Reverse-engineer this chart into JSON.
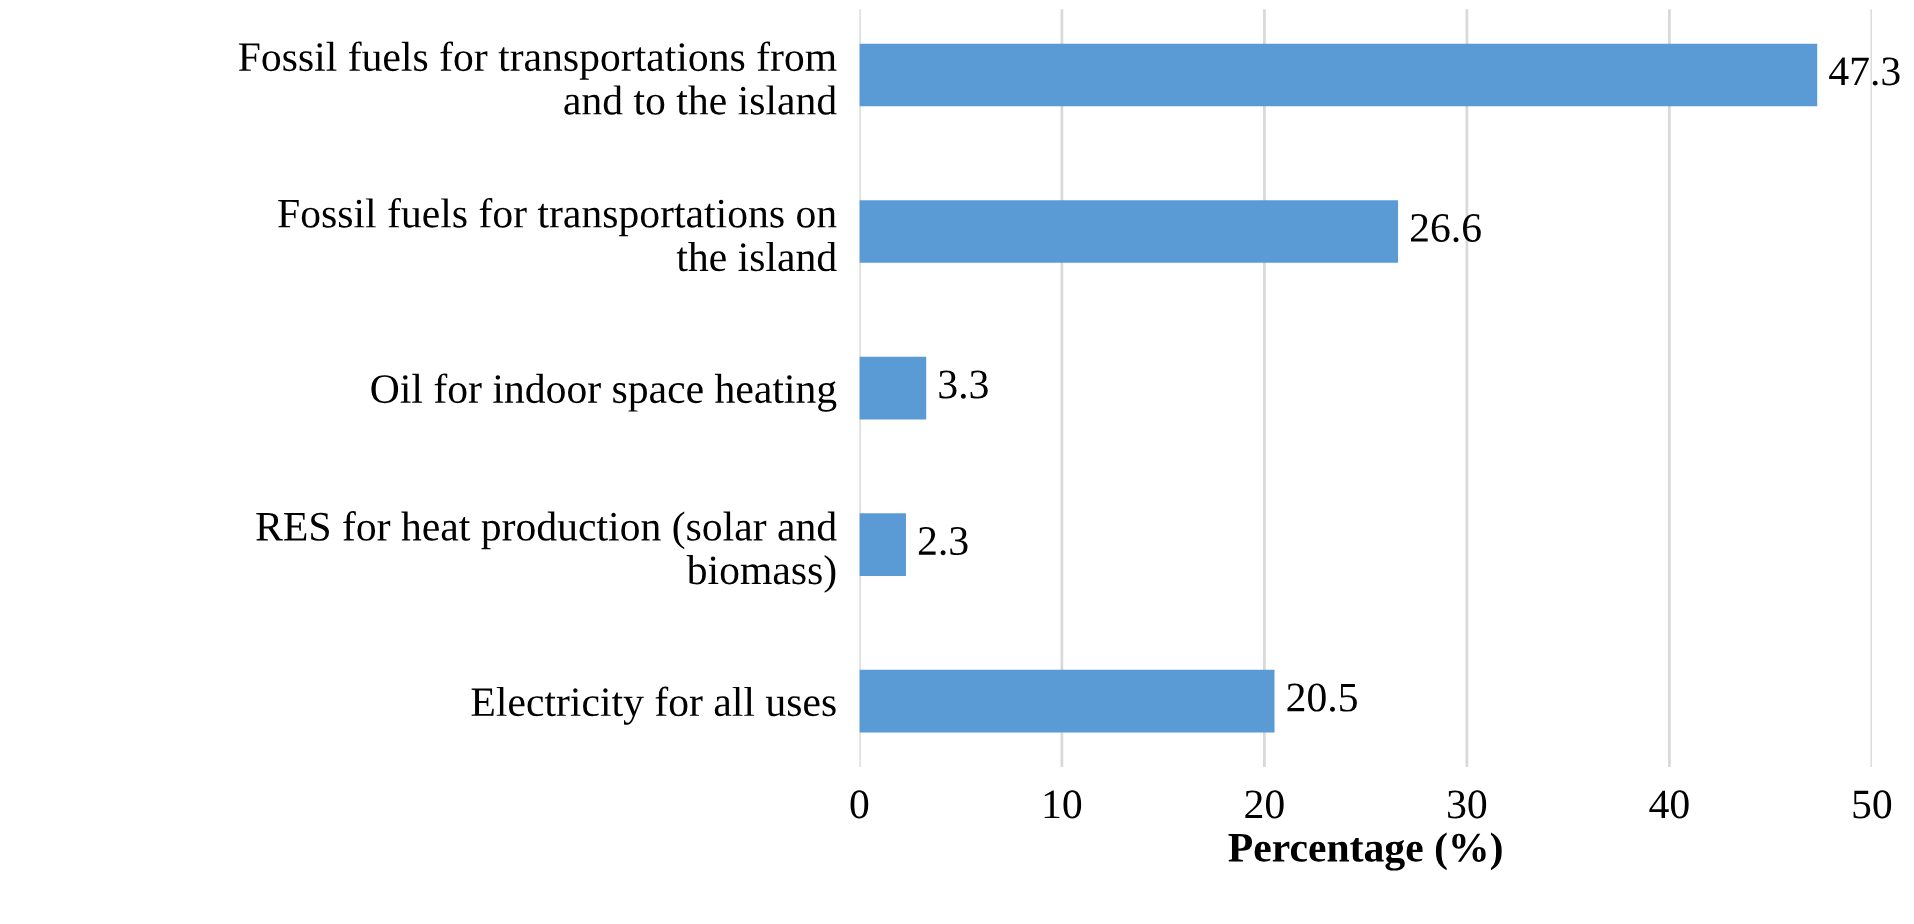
{
  "chart_data": {
    "type": "bar",
    "orientation": "horizontal",
    "xlabel": "Percentage (%)",
    "categories": [
      "Fossil fuels for transportations from\nand to the island",
      "Fossil fuels for transportations on\nthe island",
      "Oil for indoor space heating",
      "RES for heat production (solar and\nbiomass)",
      "Electricity for all uses"
    ],
    "values": [
      47.3,
      26.6,
      3.3,
      2.3,
      20.5
    ],
    "color": "#5b9bd5",
    "data_labels": true,
    "xlim": [
      0,
      50
    ],
    "xticks": [
      0,
      10,
      20,
      30,
      40,
      50
    ],
    "grid": "x",
    "legend": false
  }
}
